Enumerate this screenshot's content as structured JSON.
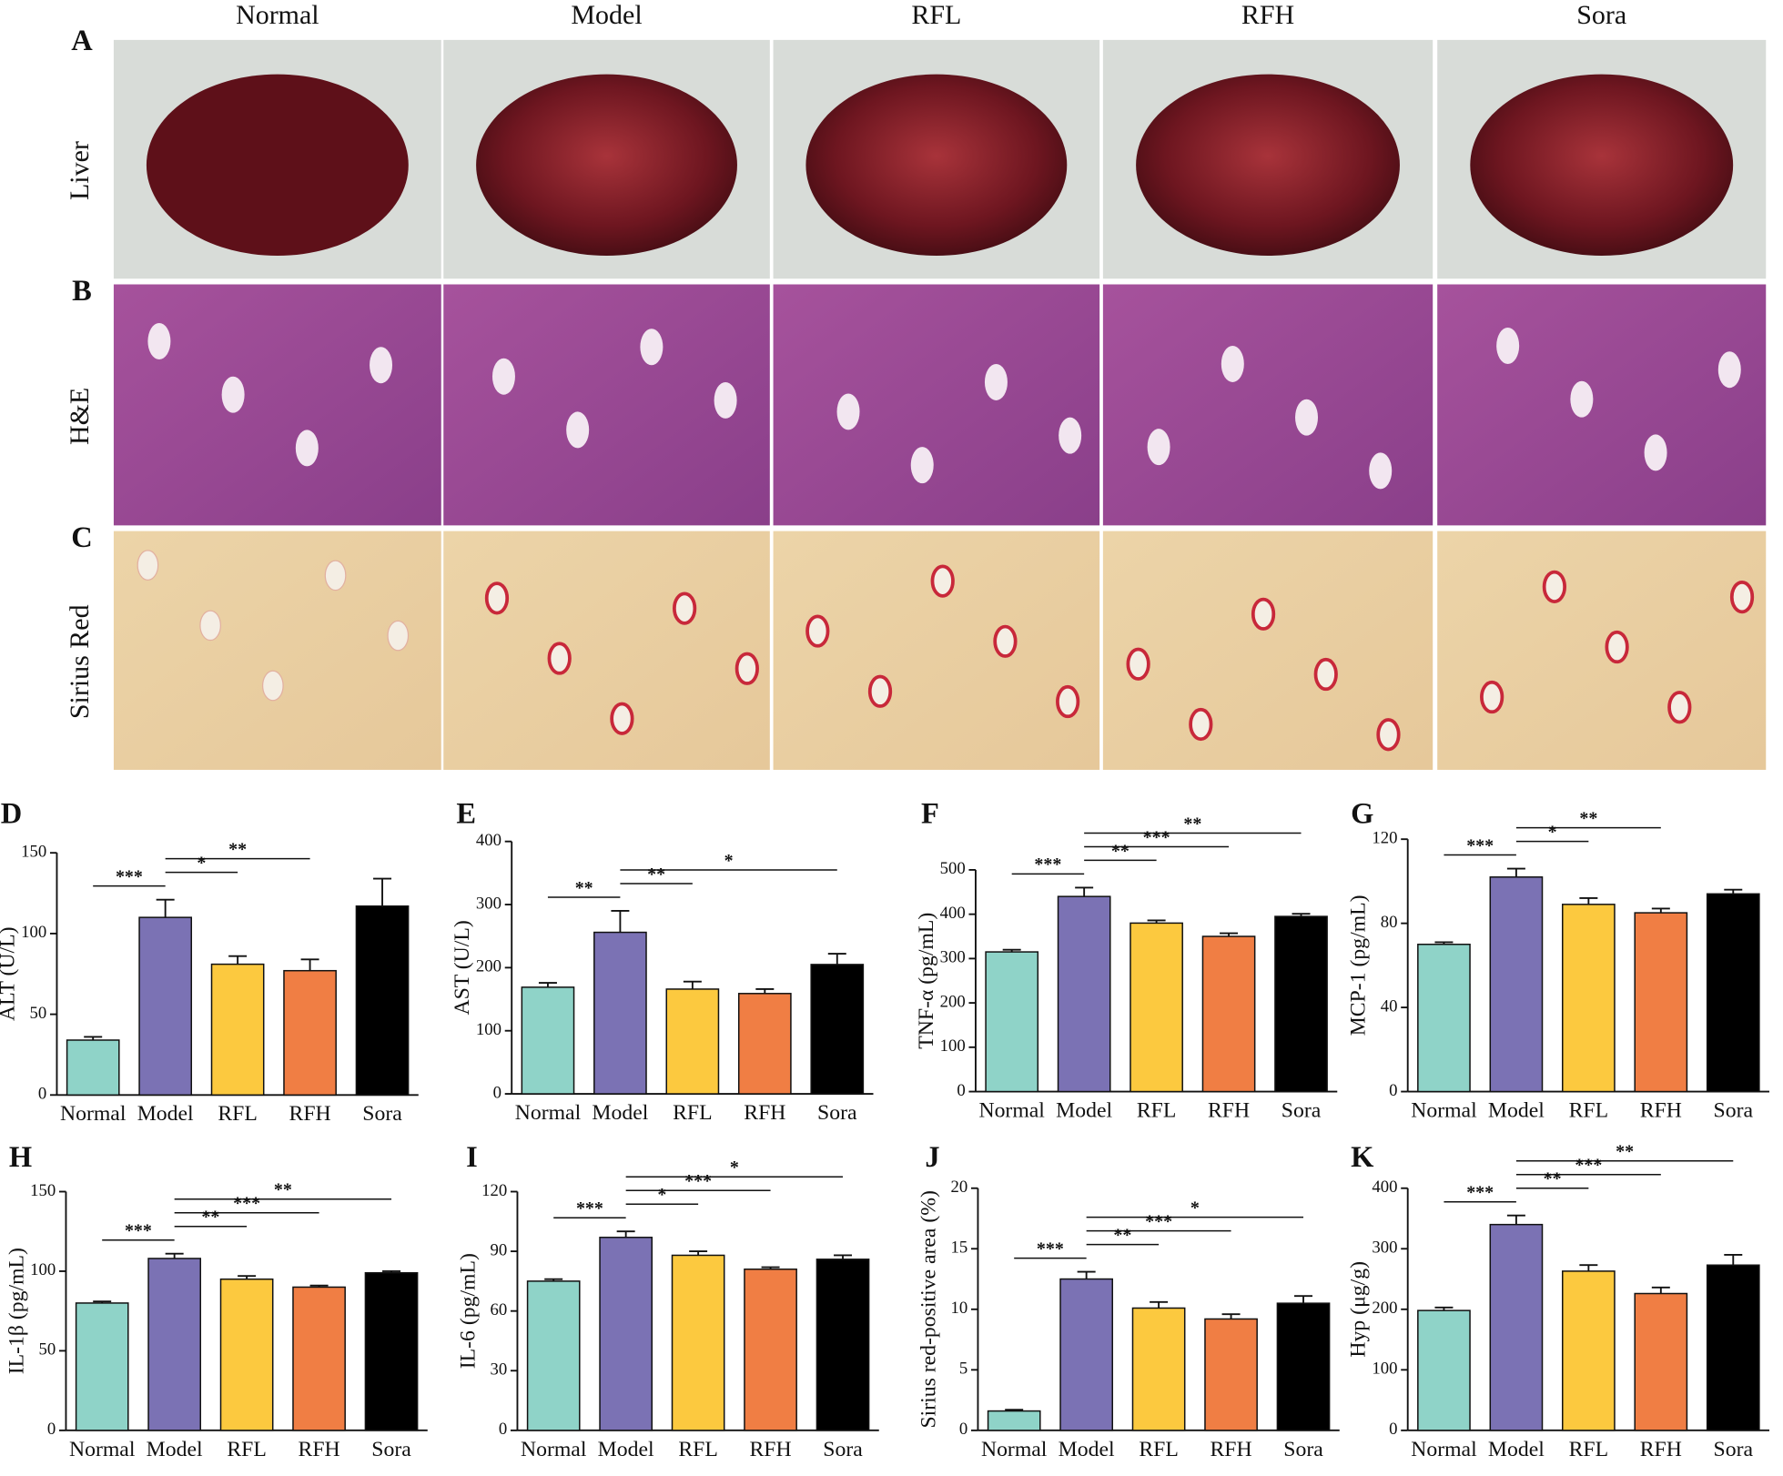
{
  "photo_panels": {
    "columns": [
      "Normal",
      "Model",
      "RFL",
      "RFH",
      "Sora"
    ],
    "rows": [
      {
        "letter": "A",
        "label": "Liver"
      },
      {
        "letter": "B",
        "label": "H&E"
      },
      {
        "letter": "C",
        "label": "Sirius Red"
      }
    ]
  },
  "chart_data": [
    {
      "type": "bar",
      "letter": "D",
      "ylabel": "ALT (U/L)",
      "categories": [
        "Normal",
        "Model",
        "RFL",
        "RFH",
        "Sora"
      ],
      "values": [
        34,
        110,
        81,
        77,
        117
      ],
      "errors": [
        2,
        11,
        5,
        7,
        17
      ],
      "colors": [
        "#8fd3c8",
        "#7b72b4",
        "#fcc93f",
        "#f07e44",
        "#000000"
      ],
      "ylim": [
        0,
        150
      ],
      "yticks": [
        0,
        50,
        100,
        150
      ],
      "significance": [
        {
          "groups": [
            "Normal",
            "Model"
          ],
          "label": "***"
        },
        {
          "groups": [
            "Model",
            "RFL"
          ],
          "label": "*"
        },
        {
          "groups": [
            "Model",
            "RFH"
          ],
          "label": "**"
        }
      ]
    },
    {
      "type": "bar",
      "letter": "E",
      "ylabel": "AST (U/L)",
      "categories": [
        "Normal",
        "Model",
        "RFL",
        "RFH",
        "Sora"
      ],
      "values": [
        169,
        256,
        166,
        159,
        205
      ],
      "errors": [
        7,
        34,
        12,
        7,
        17
      ],
      "colors": [
        "#8fd3c8",
        "#7b72b4",
        "#fcc93f",
        "#f07e44",
        "#000000"
      ],
      "ylim": [
        0,
        400
      ],
      "yticks": [
        0,
        100,
        200,
        300,
        400
      ],
      "significance": [
        {
          "groups": [
            "Normal",
            "Model"
          ],
          "label": "**"
        },
        {
          "groups": [
            "Model",
            "RFL"
          ],
          "label": "**"
        },
        {
          "groups": [
            "Model",
            "Sora"
          ],
          "label": "*"
        }
      ]
    },
    {
      "type": "bar",
      "letter": "F",
      "ylabel": "TNF-α (pg/mL)",
      "categories": [
        "Normal",
        "Model",
        "RFL",
        "RFH",
        "Sora"
      ],
      "values": [
        315,
        440,
        380,
        350,
        395
      ],
      "errors": [
        5,
        20,
        6,
        7,
        6
      ],
      "colors": [
        "#8fd3c8",
        "#7b72b4",
        "#fcc93f",
        "#f07e44",
        "#000000"
      ],
      "ylim": [
        0,
        500
      ],
      "yticks": [
        0,
        100,
        200,
        300,
        400,
        500
      ],
      "significance": [
        {
          "groups": [
            "Normal",
            "Model"
          ],
          "label": "***"
        },
        {
          "groups": [
            "Model",
            "RFL"
          ],
          "label": "**"
        },
        {
          "groups": [
            "Model",
            "RFH"
          ],
          "label": "***"
        },
        {
          "groups": [
            "Model",
            "Sora"
          ],
          "label": "**"
        }
      ]
    },
    {
      "type": "bar",
      "letter": "G",
      "ylabel": "MCP-1 (pg/mL)",
      "categories": [
        "Normal",
        "Model",
        "RFL",
        "RFH",
        "Sora"
      ],
      "values": [
        70,
        102,
        89,
        85,
        94
      ],
      "errors": [
        1,
        4,
        3,
        2,
        2
      ],
      "colors": [
        "#8fd3c8",
        "#7b72b4",
        "#fcc93f",
        "#f07e44",
        "#000000"
      ],
      "ylim": [
        0,
        120
      ],
      "yticks": [
        0,
        40,
        80,
        120
      ],
      "significance": [
        {
          "groups": [
            "Normal",
            "Model"
          ],
          "label": "***"
        },
        {
          "groups": [
            "Model",
            "RFL"
          ],
          "label": "*"
        },
        {
          "groups": [
            "Model",
            "RFH"
          ],
          "label": "**"
        }
      ]
    },
    {
      "type": "bar",
      "letter": "H",
      "ylabel": "IL-1β (pg/mL)",
      "categories": [
        "Normal",
        "Model",
        "RFL",
        "RFH",
        "Sora"
      ],
      "values": [
        80,
        108,
        95,
        90,
        99
      ],
      "errors": [
        1,
        3,
        2,
        1,
        1
      ],
      "colors": [
        "#8fd3c8",
        "#7b72b4",
        "#fcc93f",
        "#f07e44",
        "#000000"
      ],
      "ylim": [
        0,
        150
      ],
      "yticks": [
        0,
        50,
        100,
        150
      ],
      "significance": [
        {
          "groups": [
            "Normal",
            "Model"
          ],
          "label": "***"
        },
        {
          "groups": [
            "Model",
            "RFL"
          ],
          "label": "**"
        },
        {
          "groups": [
            "Model",
            "RFH"
          ],
          "label": "***"
        },
        {
          "groups": [
            "Model",
            "Sora"
          ],
          "label": "**"
        }
      ]
    },
    {
      "type": "bar",
      "letter": "I",
      "ylabel": "IL-6 (pg/mL)",
      "categories": [
        "Normal",
        "Model",
        "RFL",
        "RFH",
        "Sora"
      ],
      "values": [
        75,
        97,
        88,
        81,
        86
      ],
      "errors": [
        1,
        3,
        2,
        1,
        2
      ],
      "colors": [
        "#8fd3c8",
        "#7b72b4",
        "#fcc93f",
        "#f07e44",
        "#000000"
      ],
      "ylim": [
        0,
        120
      ],
      "yticks": [
        0,
        30,
        60,
        90,
        120
      ],
      "significance": [
        {
          "groups": [
            "Normal",
            "Model"
          ],
          "label": "***"
        },
        {
          "groups": [
            "Model",
            "RFL"
          ],
          "label": "*"
        },
        {
          "groups": [
            "Model",
            "RFH"
          ],
          "label": "***"
        },
        {
          "groups": [
            "Model",
            "Sora"
          ],
          "label": "*"
        }
      ]
    },
    {
      "type": "bar",
      "letter": "J",
      "ylabel": "Sirius red-positive area (%)",
      "categories": [
        "Normal",
        "Model",
        "RFL",
        "RFH",
        "Sora"
      ],
      "values": [
        1.6,
        12.5,
        10.1,
        9.2,
        10.5
      ],
      "errors": [
        0.1,
        0.6,
        0.5,
        0.4,
        0.6
      ],
      "colors": [
        "#8fd3c8",
        "#7b72b4",
        "#fcc93f",
        "#f07e44",
        "#000000"
      ],
      "ylim": [
        0,
        20
      ],
      "yticks": [
        0,
        5,
        10,
        15,
        20
      ],
      "significance": [
        {
          "groups": [
            "Normal",
            "Model"
          ],
          "label": "***"
        },
        {
          "groups": [
            "Model",
            "RFL"
          ],
          "label": "**"
        },
        {
          "groups": [
            "Model",
            "RFH"
          ],
          "label": "***"
        },
        {
          "groups": [
            "Model",
            "Sora"
          ],
          "label": "*"
        }
      ]
    },
    {
      "type": "bar",
      "letter": "K",
      "ylabel": "Hyp (μg/g)",
      "categories": [
        "Normal",
        "Model",
        "RFL",
        "RFH",
        "Sora"
      ],
      "values": [
        198,
        340,
        263,
        226,
        273
      ],
      "errors": [
        5,
        15,
        10,
        10,
        17
      ],
      "colors": [
        "#8fd3c8",
        "#7b72b4",
        "#fcc93f",
        "#f07e44",
        "#000000"
      ],
      "ylim": [
        0,
        400
      ],
      "yticks": [
        0,
        100,
        200,
        300,
        400
      ],
      "significance": [
        {
          "groups": [
            "Normal",
            "Model"
          ],
          "label": "***"
        },
        {
          "groups": [
            "Model",
            "RFL"
          ],
          "label": "**"
        },
        {
          "groups": [
            "Model",
            "RFH"
          ],
          "label": "***"
        },
        {
          "groups": [
            "Model",
            "Sora"
          ],
          "label": "**"
        }
      ]
    }
  ]
}
